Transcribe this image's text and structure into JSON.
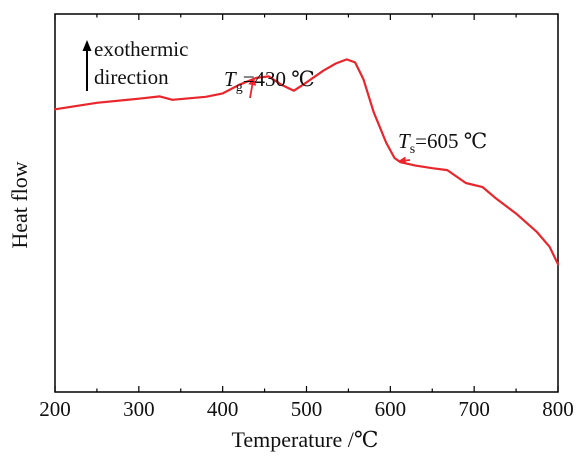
{
  "chart_data": {
    "type": "line",
    "title": "",
    "xlabel": "Temperature /℃",
    "ylabel": "Heat flow",
    "xlim": [
      200,
      800
    ],
    "ylim": [
      0,
      100
    ],
    "x_ticks": [
      200,
      300,
      400,
      500,
      600,
      700,
      800
    ],
    "y_ticks": [],
    "grid": false,
    "legend": "none",
    "series": [
      {
        "color": "#e8262c",
        "points": [
          [
            200,
            74.8
          ],
          [
            250,
            76.5
          ],
          [
            300,
            77.6
          ],
          [
            325,
            78.2
          ],
          [
            340,
            77.3
          ],
          [
            380,
            78.1
          ],
          [
            400,
            79.0
          ],
          [
            420,
            81.3
          ],
          [
            440,
            83.1
          ],
          [
            455,
            83.5
          ],
          [
            470,
            81.3
          ],
          [
            485,
            79.7
          ],
          [
            500,
            81.9
          ],
          [
            520,
            85.0
          ],
          [
            535,
            86.9
          ],
          [
            548,
            88.0
          ],
          [
            558,
            87.2
          ],
          [
            568,
            82.7
          ],
          [
            580,
            74.1
          ],
          [
            595,
            66.0
          ],
          [
            605,
            61.9
          ],
          [
            612,
            60.8
          ],
          [
            630,
            59.9
          ],
          [
            650,
            59.2
          ],
          [
            668,
            58.7
          ],
          [
            690,
            55.3
          ],
          [
            710,
            54.2
          ],
          [
            725,
            51.4
          ],
          [
            750,
            47.2
          ],
          [
            775,
            42.3
          ],
          [
            790,
            38.4
          ],
          [
            800,
            33.8
          ]
        ]
      }
    ],
    "note": {
      "arrow_icon": "up-arrow-icon",
      "line1": "exothermic",
      "line2": "direction"
    },
    "annotations": [
      {
        "symbol": "T",
        "subscript": "g",
        "value": "=430 ℃",
        "target": [
          437,
          83.3
        ]
      },
      {
        "symbol": "T",
        "subscript": "s",
        "value": "=605 ℃",
        "target": [
          609,
          61.0
        ]
      }
    ]
  }
}
